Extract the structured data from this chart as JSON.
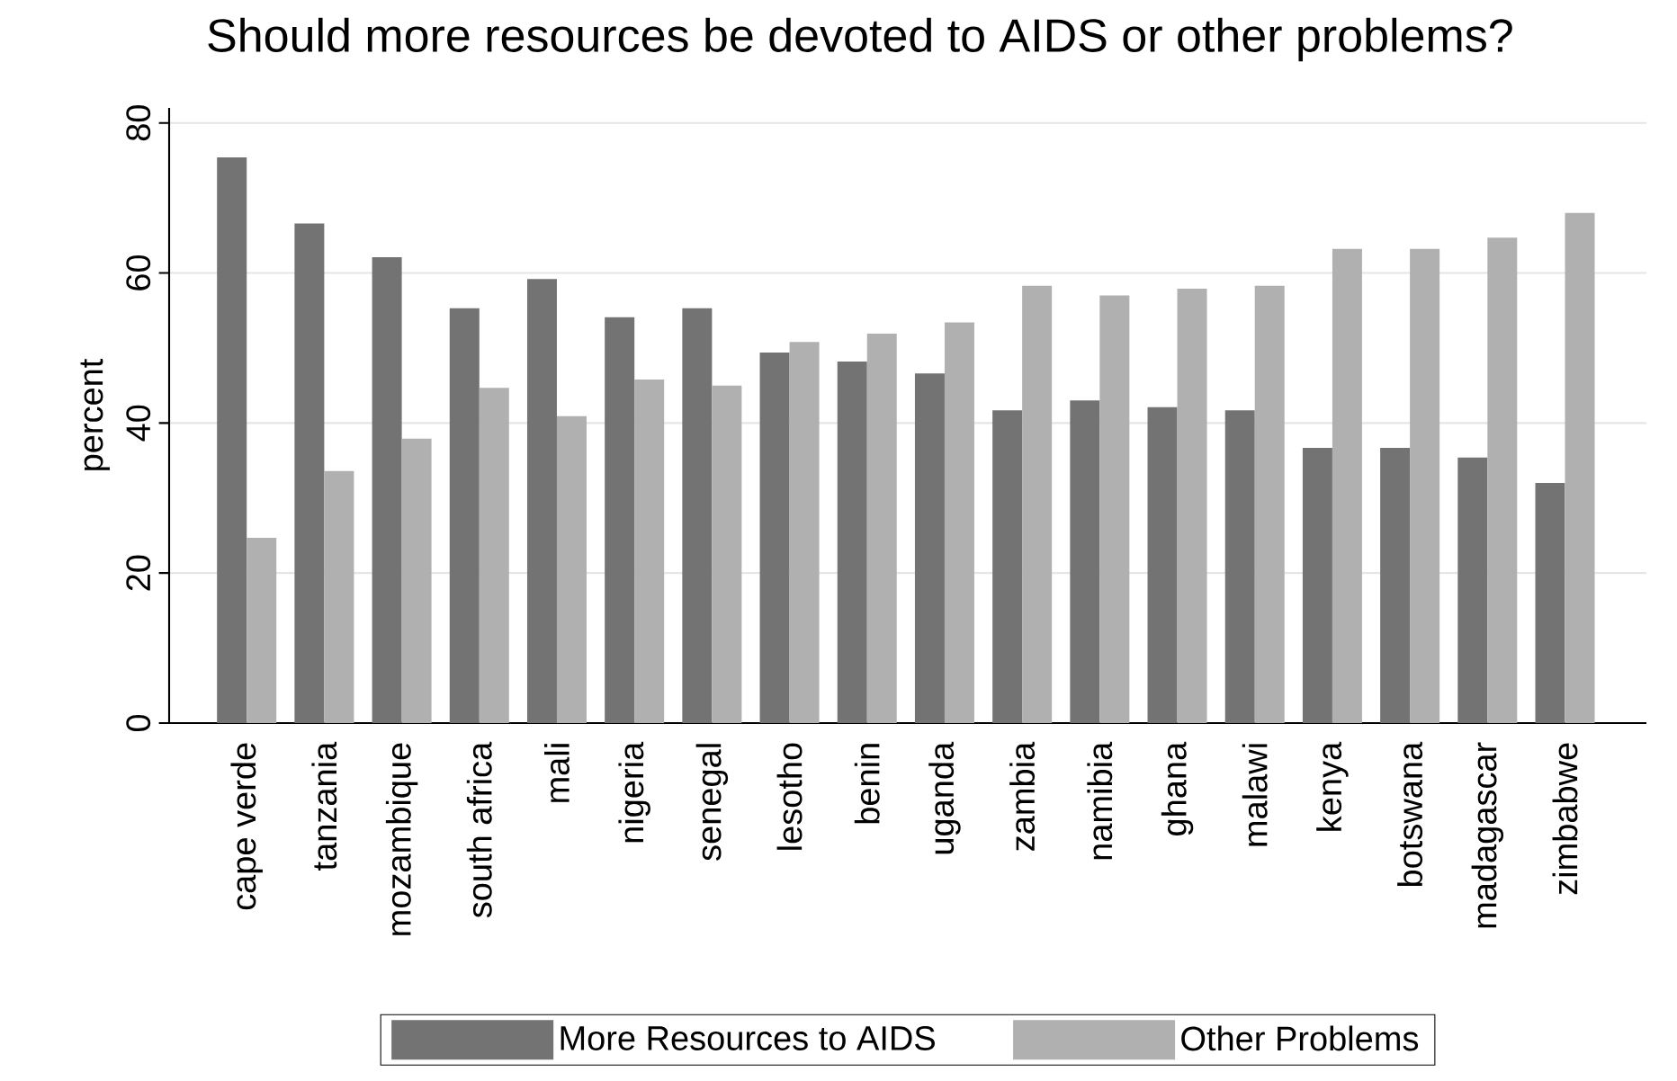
{
  "chart_data": {
    "type": "bar",
    "title": "Should more resources be devoted to AIDS or other problems?",
    "ylabel": "percent",
    "categories": [
      "cape verde",
      "tanzania",
      "mozambique",
      "south africa",
      "mali",
      "nigeria",
      "senegal",
      "lesotho",
      "benin",
      "uganda",
      "zambia",
      "namibia",
      "ghana",
      "malawi",
      "kenya",
      "botswana",
      "madagascar",
      "zimbabwe"
    ],
    "series": [
      {
        "name": "More Resources to AIDS",
        "color": "#737373",
        "values": [
          75.4,
          66.6,
          62.1,
          55.3,
          59.2,
          54.1,
          55.3,
          49.4,
          48.2,
          46.6,
          41.7,
          43.0,
          42.1,
          41.7,
          36.7,
          36.7,
          35.4,
          32.0
        ]
      },
      {
        "name": "Other Problems",
        "color": "#b0b0b0",
        "values": [
          24.7,
          33.6,
          37.9,
          44.7,
          40.9,
          45.8,
          45.0,
          50.8,
          51.9,
          53.4,
          58.3,
          57.0,
          57.9,
          58.3,
          63.2,
          63.2,
          64.7,
          68.0
        ]
      }
    ],
    "ylim": [
      0,
      82
    ],
    "yticks": [
      0,
      20,
      40,
      60,
      80
    ],
    "grid": "y",
    "legend": "bottom"
  }
}
